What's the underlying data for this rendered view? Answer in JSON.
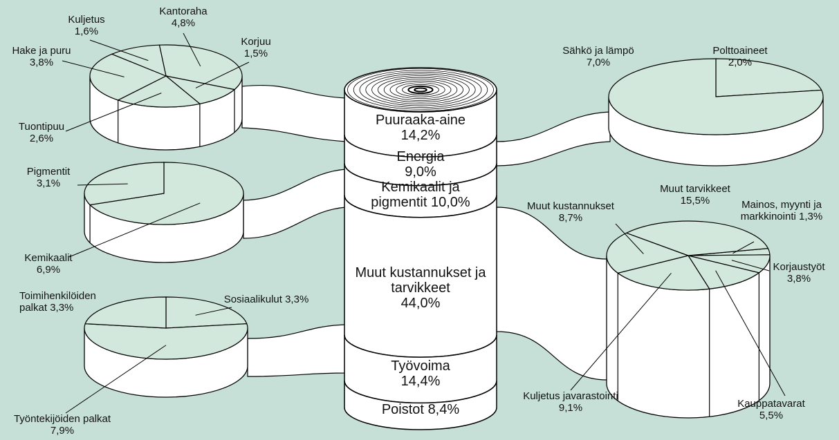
{
  "chart_data": [
    {
      "type": "cylinder",
      "categories": [
        "Puuraaka-aine",
        "Energia",
        "Kemikaalit ja pigmentit",
        "Muut kustannukset ja tarvikkeet",
        "Työvoima",
        "Poistot"
      ],
      "values": [
        14.2,
        9.0,
        10.0,
        44.0,
        14.4,
        8.4
      ],
      "value_labels": [
        "14,2%",
        "9,0%",
        "10,0%",
        "44,0%",
        "14,4%",
        "8,4%"
      ]
    },
    {
      "type": "pie",
      "categories": [
        "Kantoraha",
        "Korjuu",
        "Tuontipuu",
        "Hake ja puru",
        "Kuljetus"
      ],
      "values": [
        4.8,
        1.5,
        2.6,
        3.8,
        1.6
      ],
      "value_labels": [
        "4,8%",
        "1,5%",
        "2,6%",
        "3,8%",
        "1,6%"
      ]
    },
    {
      "type": "pie",
      "categories": [
        "Polttoaineet",
        "Sähkö ja lämpö"
      ],
      "values": [
        2.0,
        7.0
      ],
      "value_labels": [
        "2,0%",
        "7,0%"
      ]
    },
    {
      "type": "pie",
      "categories": [
        "Kemikaalit",
        "Pigmentit"
      ],
      "values": [
        6.9,
        3.1
      ],
      "value_labels": [
        "6,9%",
        "3,1%"
      ]
    },
    {
      "type": "pie",
      "categories": [
        "Mainos, myynti ja markkinointi",
        "Korjaustyöt",
        "Kauppatavarat",
        "Kuljetus javarastointi",
        "Muut kustannukset",
        "Muut tarvikkeet"
      ],
      "values": [
        1.3,
        3.8,
        5.5,
        9.1,
        8.7,
        15.5
      ],
      "value_labels": [
        "1,3%",
        "3,8%",
        "5,5%",
        "9,1%",
        "8,7%",
        "15,5%"
      ]
    },
    {
      "type": "pie",
      "categories": [
        "Sosiaalikulut",
        "Työntekijöiden palkat",
        "Toimihenkilöiden palkat"
      ],
      "values": [
        3.3,
        7.9,
        3.3
      ],
      "value_labels": [
        "3,3%",
        "7,9%",
        "3,3%"
      ]
    }
  ]
}
